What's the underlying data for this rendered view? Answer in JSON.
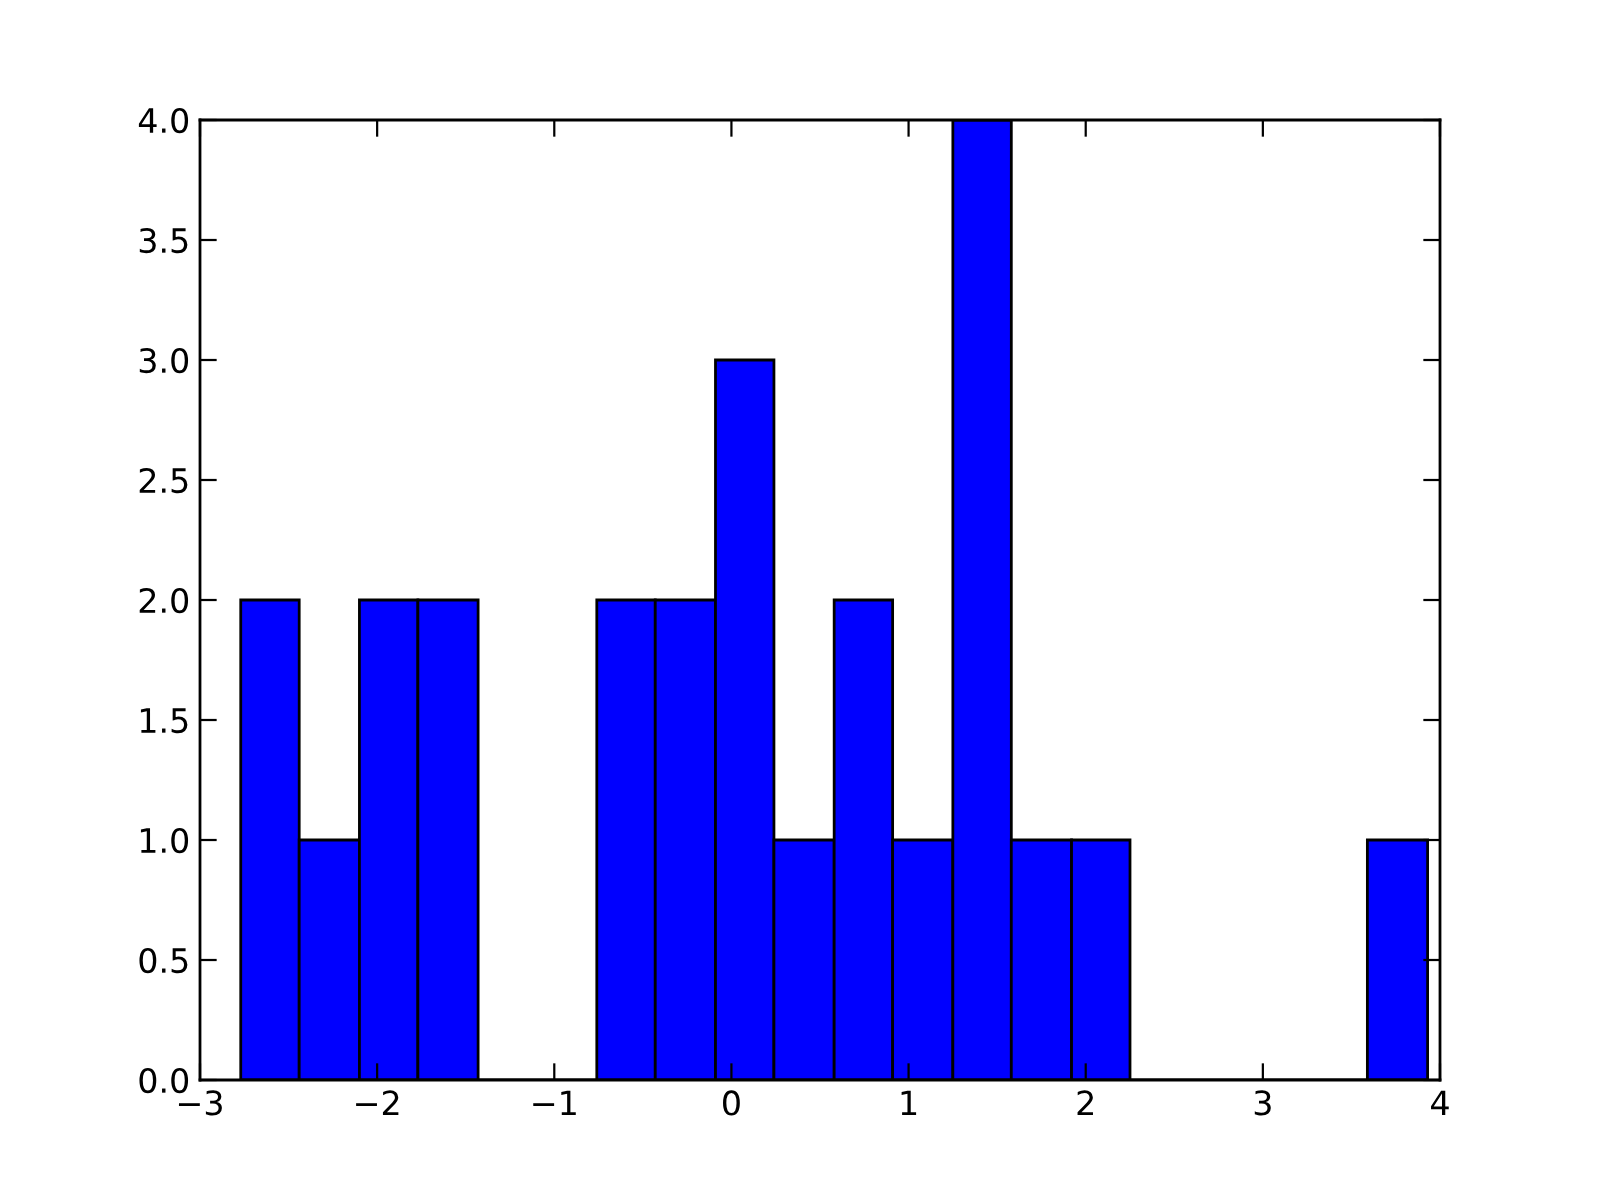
{
  "chart_data": {
    "type": "histogram",
    "bins": [
      -2.77,
      -2.44,
      -2.1,
      -1.77,
      -1.43,
      -0.76,
      -0.43,
      -0.09,
      0.24,
      0.58,
      0.91,
      1.25,
      1.58,
      1.92,
      2.25,
      3.59,
      3.93
    ],
    "values": [
      2,
      1,
      2,
      2,
      0,
      2,
      2,
      3,
      1,
      2,
      1,
      4,
      1,
      1,
      0,
      1
    ],
    "color": "#0000ff",
    "xlim": [
      -3,
      4
    ],
    "xticks": [
      {
        "value": -3,
        "label": "−3"
      },
      {
        "value": -2,
        "label": "−2"
      },
      {
        "value": -1,
        "label": "−1"
      },
      0,
      1,
      2,
      3,
      4
    ],
    "ylim": [
      0,
      4
    ],
    "yticks": [
      {
        "value": 0,
        "label": "0.0"
      },
      {
        "value": 0.5,
        "label": "0.5"
      },
      {
        "value": 1,
        "label": "1.0"
      },
      {
        "value": 1.5,
        "label": "1.5"
      },
      {
        "value": 2,
        "label": "2.0"
      },
      {
        "value": 2.5,
        "label": "2.5"
      },
      {
        "value": 3,
        "label": "3.0"
      },
      {
        "value": 3.5,
        "label": "3.5"
      },
      {
        "value": 4,
        "label": "4.0"
      }
    ],
    "grid": false
  }
}
